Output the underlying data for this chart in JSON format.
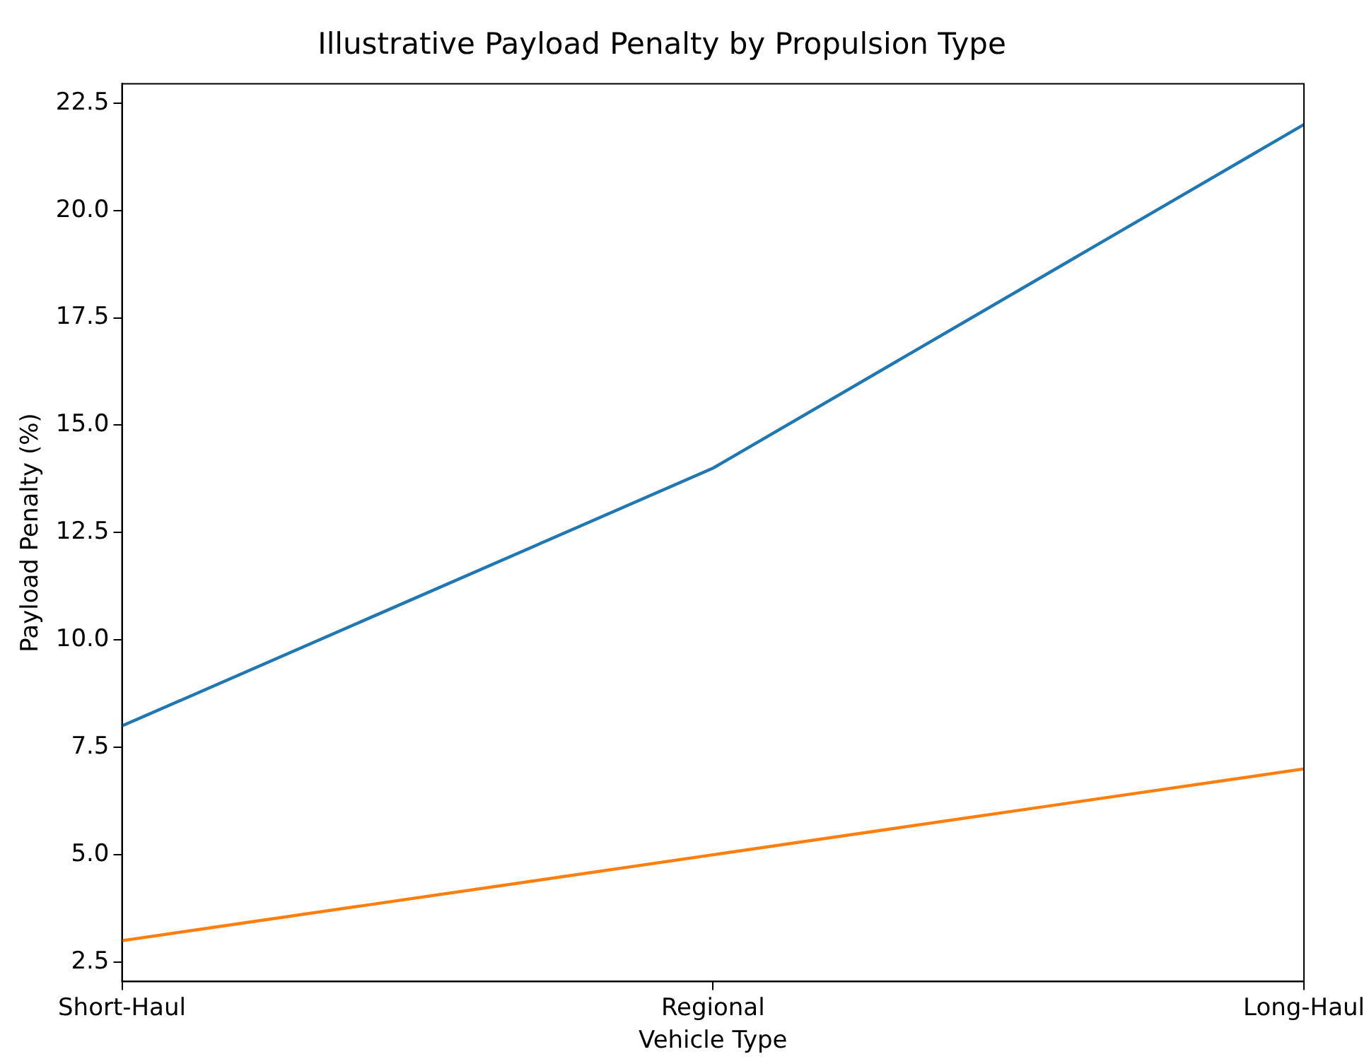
{
  "chart_data": {
    "type": "line",
    "title": "Illustrative Payload Penalty by Propulsion Type",
    "xlabel": "Vehicle Type",
    "ylabel": "Payload Penalty (%)",
    "categories": [
      "Short-Haul",
      "Regional",
      "Long-Haul"
    ],
    "series": [
      {
        "color": "#1f77b4",
        "values": [
          8,
          14,
          22
        ]
      },
      {
        "color": "#ff7f0e",
        "values": [
          3,
          5,
          7
        ]
      }
    ],
    "ylim": [
      2.05,
      22.95
    ],
    "yticks": [
      {
        "value": 2.5,
        "label": "2.5"
      },
      {
        "value": 5,
        "label": "5.0"
      },
      {
        "value": 7.5,
        "label": "7.5"
      },
      {
        "value": 10,
        "label": "10.0"
      },
      {
        "value": 12.5,
        "label": "12.5"
      },
      {
        "value": 15,
        "label": "15.0"
      },
      {
        "value": 17.5,
        "label": "17.5"
      },
      {
        "value": 20,
        "label": "20.0"
      },
      {
        "value": 22.5,
        "label": "22.5"
      }
    ],
    "grid": false,
    "legend": false,
    "marker": "none",
    "line_style": "solid"
  }
}
